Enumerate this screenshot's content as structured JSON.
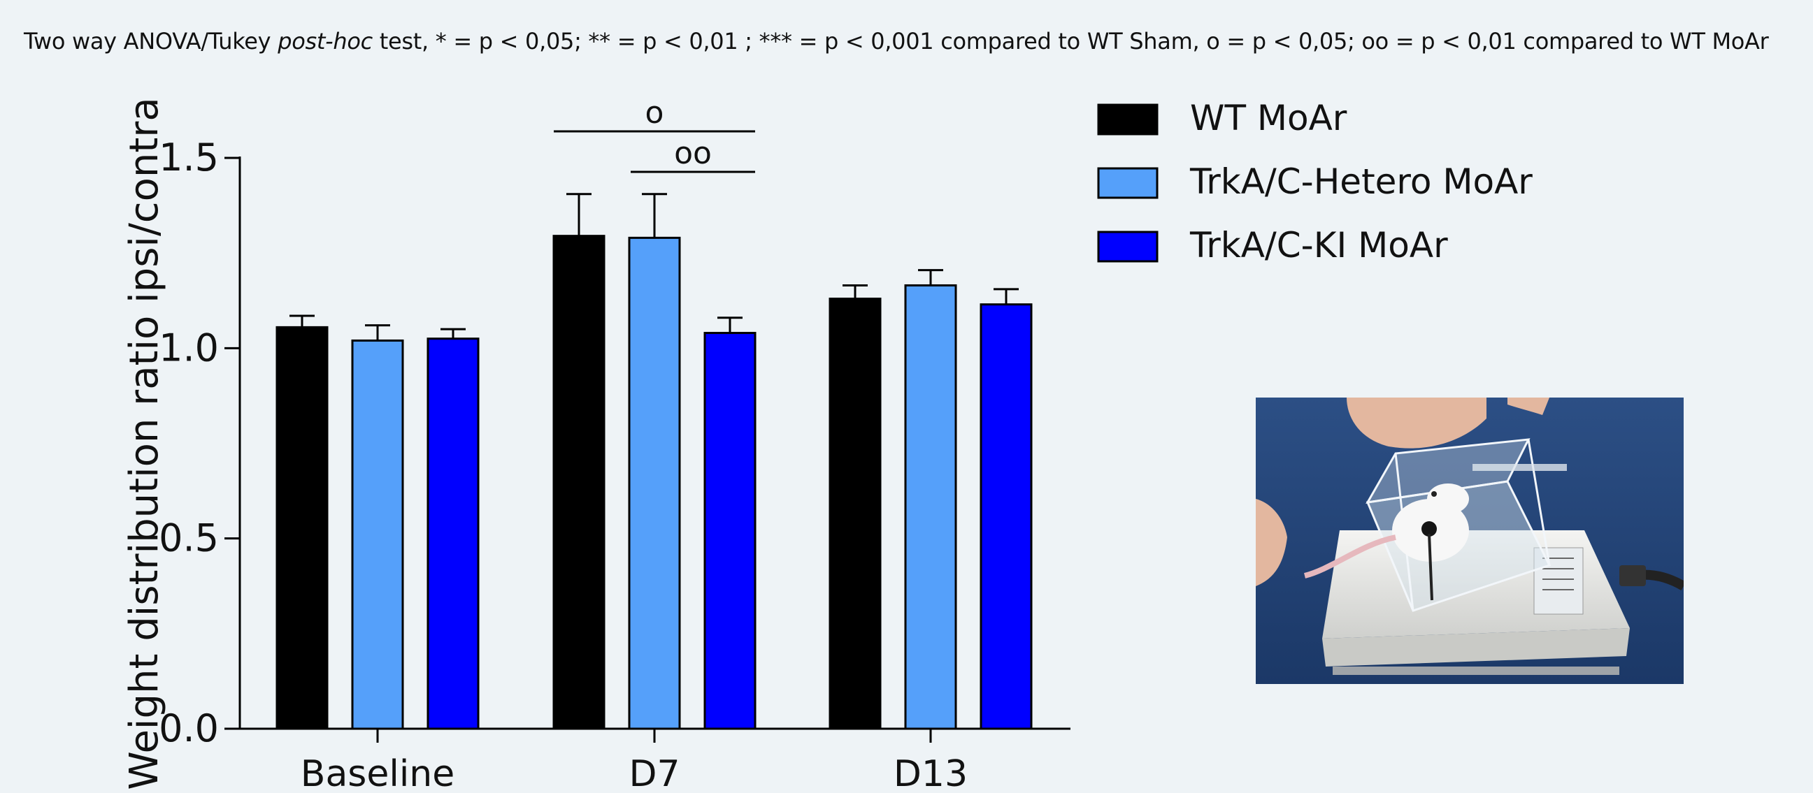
{
  "caption": {
    "part1": "Two way ANOVA/Tukey ",
    "italic": "post-hoc",
    "part2": " test, * = p < 0,05; ** = p < 0,01 ; *** = p < 0,001 compared to WT Sham, o = p < 0,05; oo = p < 0,01 compared to WT MoAr"
  },
  "chart_data": {
    "type": "bar",
    "title": "",
    "xlabel": "",
    "ylabel": "Weight distribution ratio ipsi/contra",
    "ylim": [
      0,
      1.5
    ],
    "yticks": [
      0.0,
      0.5,
      1.0,
      1.5
    ],
    "ytick_labels": [
      "0.0",
      "0.5",
      "1.0",
      "1.5"
    ],
    "categories": [
      "Baseline",
      "D7",
      "D13"
    ],
    "series": [
      {
        "name": "WT MoAr",
        "color": "#000000",
        "values": [
          1.055,
          1.295,
          1.13
        ],
        "errors": [
          0.03,
          0.11,
          0.035
        ]
      },
      {
        "name": "TrkA/C-Hetero MoAr",
        "color": "#55a0fa",
        "values": [
          1.02,
          1.29,
          1.165
        ],
        "errors": [
          0.04,
          0.115,
          0.04
        ]
      },
      {
        "name": "TrkA/C-KI MoAr",
        "color": "#0000ff",
        "values": [
          1.025,
          1.04,
          1.115
        ],
        "errors": [
          0.025,
          0.04,
          0.04
        ]
      }
    ],
    "annotations": [
      {
        "text": "o",
        "category": "D7",
        "from_series": 0,
        "to_series": 2
      },
      {
        "text": "oo",
        "category": "D7",
        "from_series": 1,
        "to_series": 2
      }
    ],
    "legend_position": "top-right"
  }
}
